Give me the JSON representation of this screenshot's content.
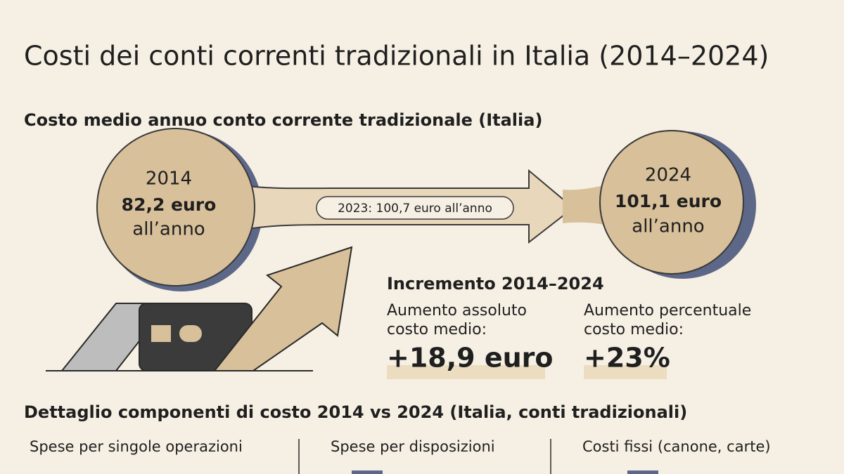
{
  "header": {
    "title": "Costi dei conti correnti tradizionali in Italia (2014–2024)"
  },
  "average_cost": {
    "title": "Costo medio annuo conto corrente tradizionale (Italia)",
    "start": {
      "year": "2014",
      "value": "82,2 euro",
      "unit": "all’anno"
    },
    "middle_label": "2023: 100,7 euro all’anno",
    "end": {
      "year": "2024",
      "value": "101,1 euro",
      "unit": "all’anno"
    }
  },
  "increase": {
    "title": "Incremento 2014–2024",
    "stats": [
      {
        "label_lines": [
          "Aumento assoluto",
          "costo medio:"
        ],
        "value": "+18,9 euro"
      },
      {
        "label_lines": [
          "Aumento percentuale",
          "costo medio:"
        ],
        "value": "+23%"
      }
    ]
  },
  "components": {
    "title": "Dettaglio componenti di costo 2014 vs 2024 (Italia, conti tradizionali)",
    "columns": [
      "Spese per singole operazioni",
      "Spese per disposizioni",
      "Costi fissi (canone, carte)"
    ]
  }
}
